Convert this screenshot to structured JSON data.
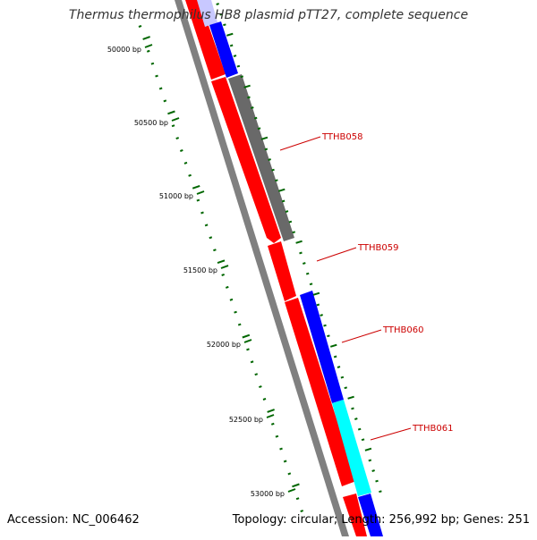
{
  "title": "Thermus thermophilus HB8 plasmid pTT27, complete sequence",
  "footer": {
    "accession": "Accession: NC_006462",
    "summary": "Topology: circular; Length: 256,992 bp; Genes: 251"
  },
  "colors": {
    "forward_track": "#ff0000",
    "backbone": "#808080",
    "tick": "#006600",
    "label": "#cc0000",
    "blue_feature": "#0000ff",
    "cyan_feature": "#00ffff",
    "gray_feature": "#696969",
    "lavender_feature": "#c8c8ff"
  },
  "ruler": [
    {
      "label": "50000 bp"
    },
    {
      "label": "50500 bp"
    },
    {
      "label": "51000 bp"
    },
    {
      "label": "51500 bp"
    },
    {
      "label": "52000 bp"
    },
    {
      "label": "52500 bp"
    },
    {
      "label": "53000 bp"
    }
  ],
  "genes": [
    {
      "label": "TTHB058"
    },
    {
      "label": "TTHB059"
    },
    {
      "label": "TTHB060"
    },
    {
      "label": "TTHB061"
    }
  ]
}
